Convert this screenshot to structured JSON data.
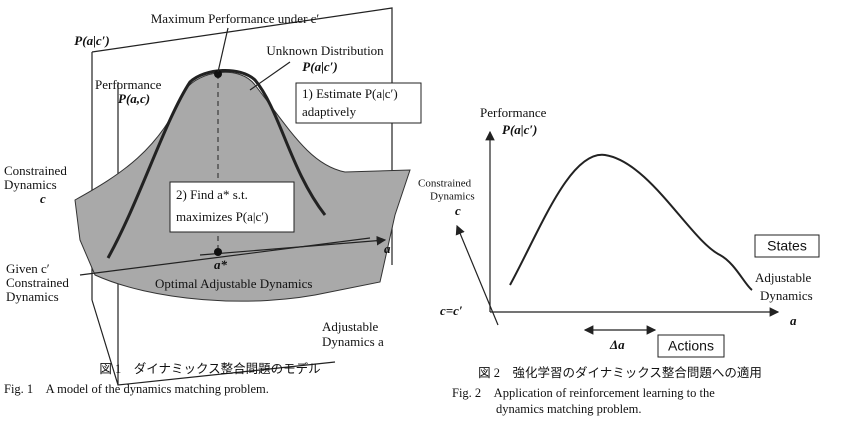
{
  "figure1": {
    "labels": {
      "max_performance": "Maximum Performance under c′",
      "vertical_axis": "P(a|c′)",
      "unknown_distribution": "Unknown Distribution",
      "unknown_p": "P(a|c′)",
      "performance": "Performance",
      "performance_p": "P(a,c)",
      "constrained": "Constrained",
      "dynamics": "Dynamics",
      "c": "c",
      "a_axis": "a",
      "a_star": "a*",
      "given_c": "Given c′",
      "given_constrained": "Constrained",
      "given_dynamics": "Dynamics",
      "optimal": "Optimal Adjustable Dynamics",
      "adjustable": "Adjustable",
      "adjustable_dynamics": "Dynamics a"
    },
    "step1": [
      "1) Estimate P(a|c′)",
      "adaptively"
    ],
    "step2": [
      "2) Find a* s.t.",
      "maximizes P(a|c′)"
    ],
    "caption_ja": "図 1　ダイナミックス整合問題のモデル",
    "caption_en": "Fig. 1　A model of the dynamics matching problem."
  },
  "figure2": {
    "labels": {
      "performance": "Performance",
      "performance_p": "P(a|c′)",
      "constrained": "Constrained",
      "dynamics": "Dynamics",
      "c": "c",
      "states": "States",
      "adjustable": "Adjustable",
      "adjustable_dynamics": "Dynamics",
      "c_eq": "c=c′",
      "a_axis": "a",
      "delta_a": "Δa",
      "actions": "Actions"
    },
    "caption_ja": "図 2　強化学習のダイナミックス整合問題への適用",
    "caption_en": [
      "Fig. 2　Application of reinforcement learning to the",
      "dynamics matching problem."
    ]
  }
}
